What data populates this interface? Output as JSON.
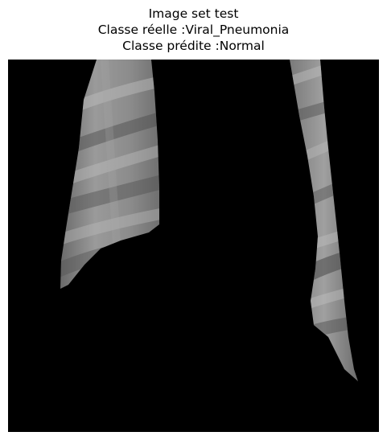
{
  "figure": {
    "title_line_1": "Image set test",
    "title_line_2": "Classe réelle :Viral_Pneumonia",
    "title_line_3": "Classe prédite :Normal"
  },
  "image": {
    "subject": "chest x-ray lung segmentation mask",
    "background_color": "#000000",
    "lung_tone_light": "#a8a8a8",
    "lung_tone_dark": "#4a4a4a"
  }
}
